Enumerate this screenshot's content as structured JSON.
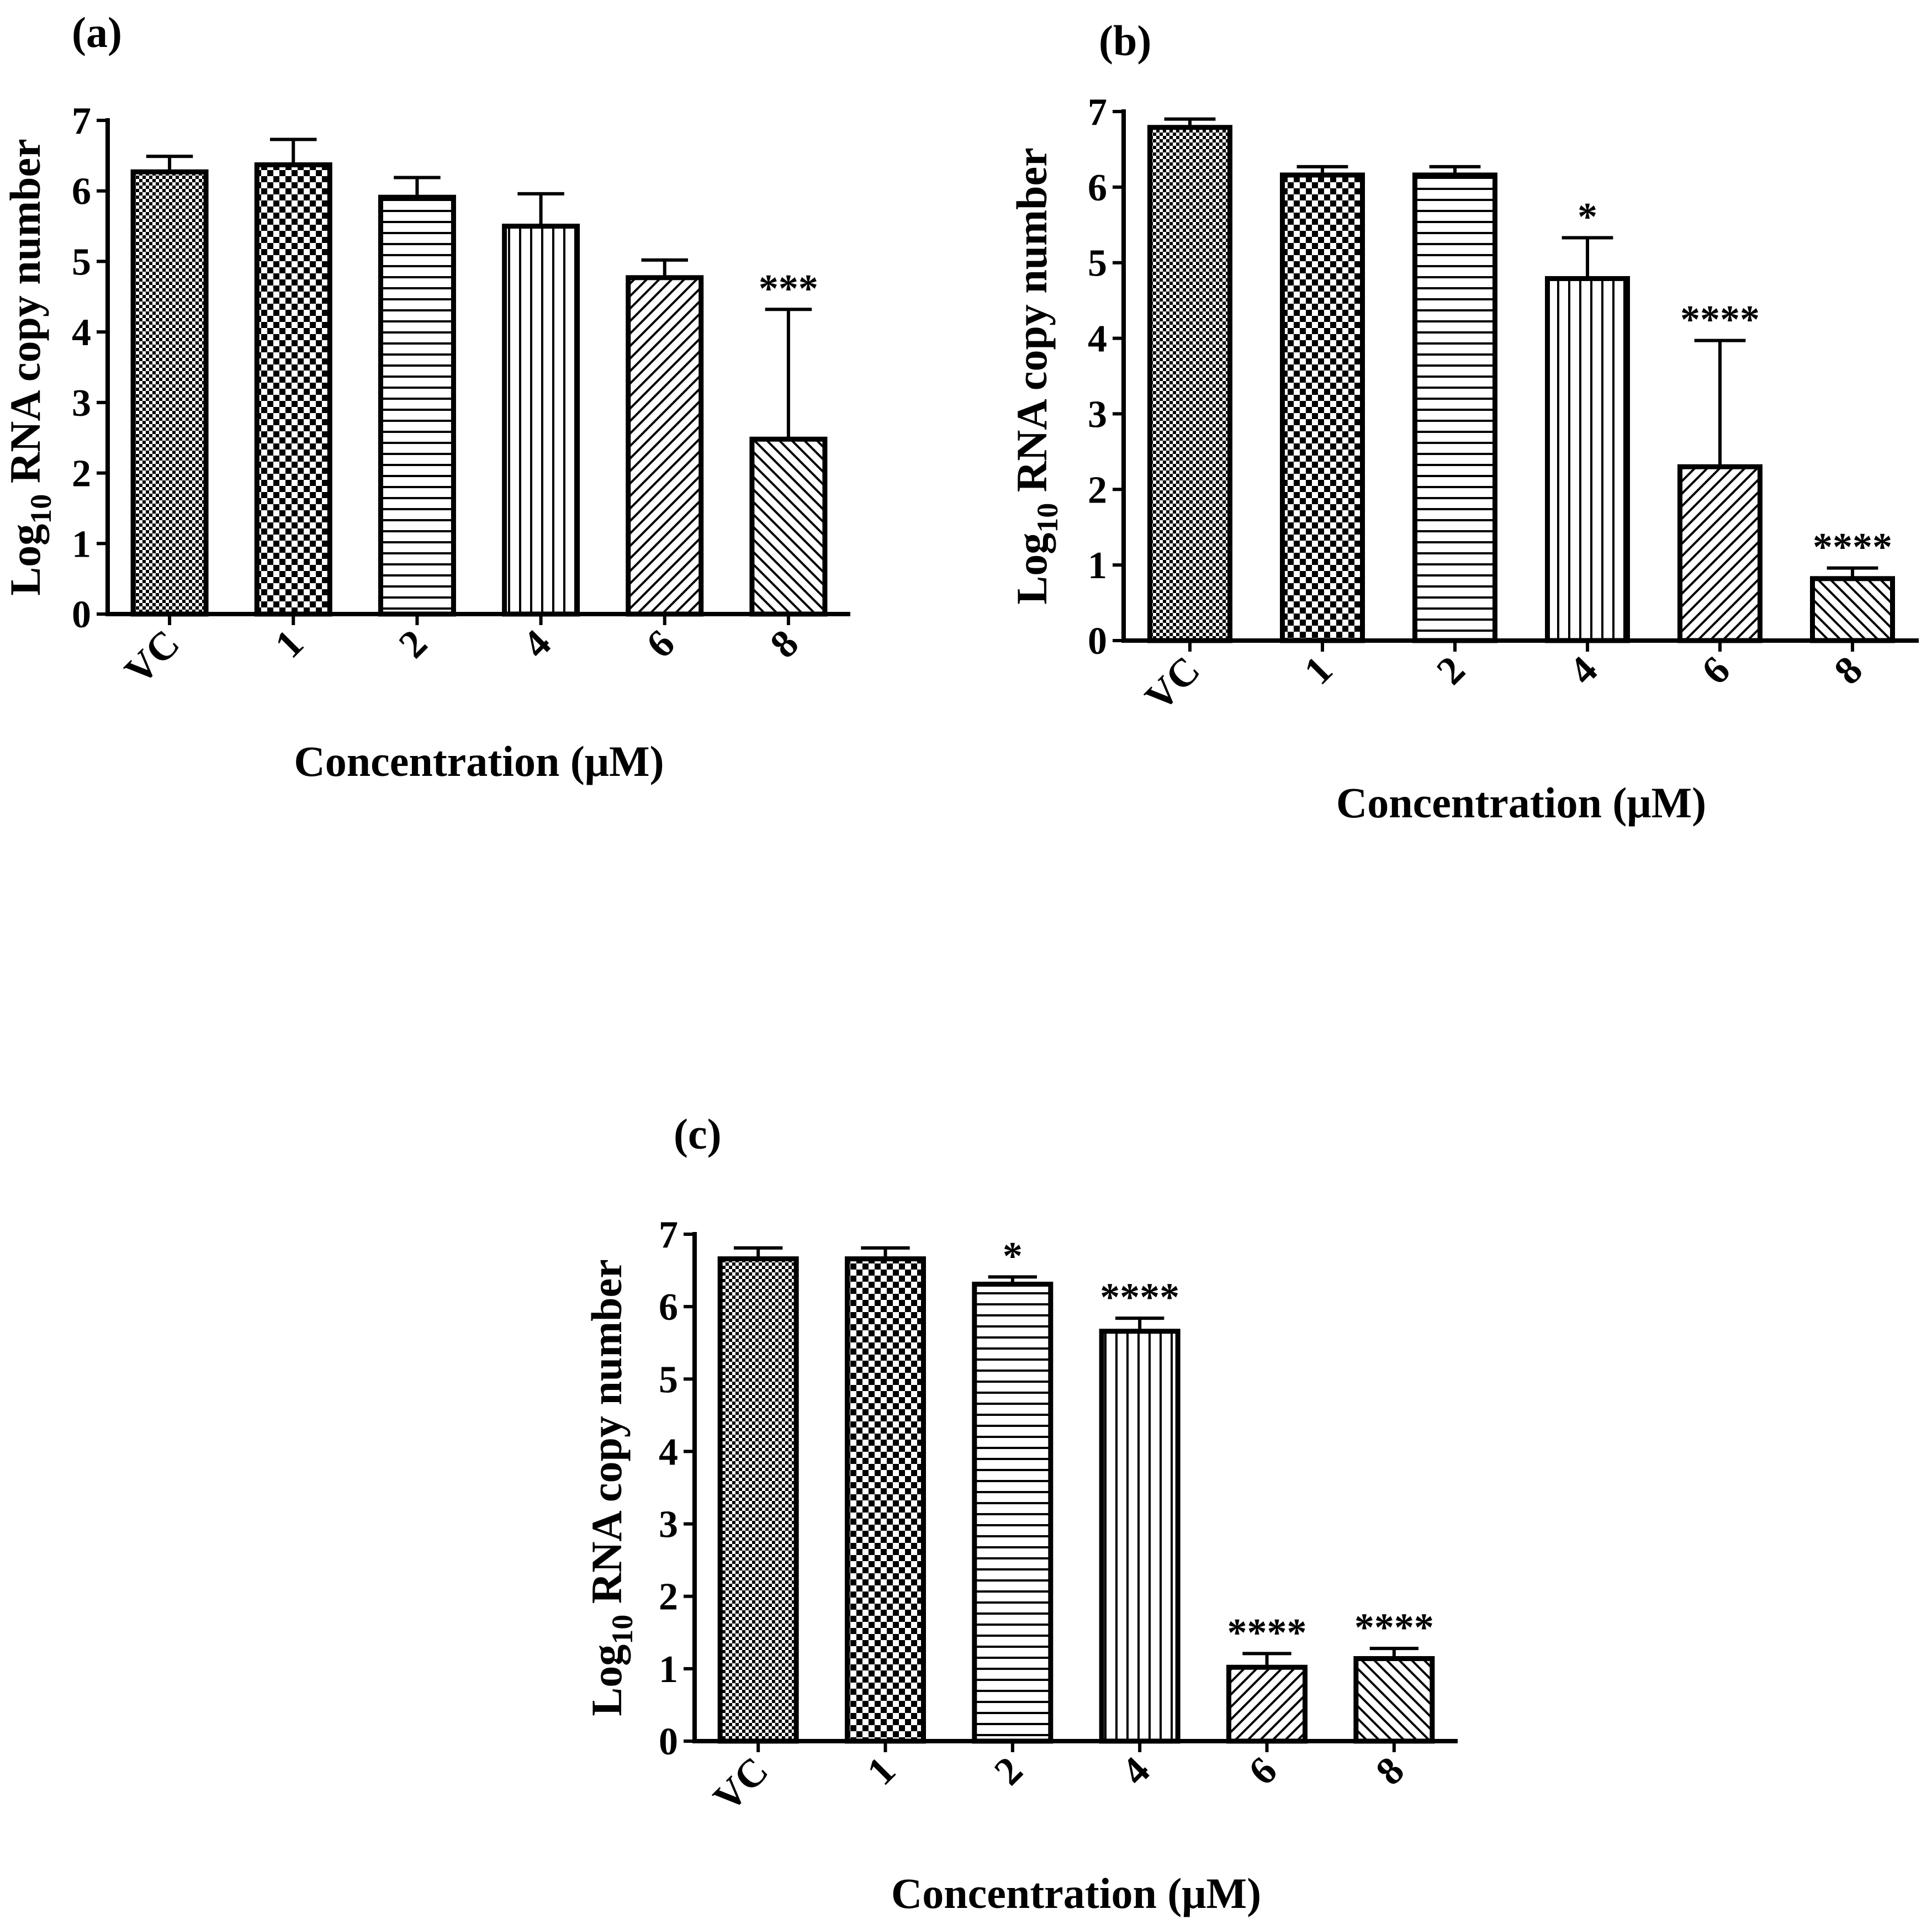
{
  "colors": {
    "ink": "#000000",
    "bar_fill": "#ffffff"
  },
  "chart_data": [
    {
      "type": "bar",
      "panel_label": "(a)",
      "title": "",
      "categories": [
        "VC",
        "1",
        "2",
        "4",
        "6",
        "8"
      ],
      "values": [
        6.27,
        6.37,
        5.91,
        5.5,
        4.77,
        2.48
      ],
      "errors": [
        0.22,
        0.36,
        0.28,
        0.46,
        0.25,
        1.84
      ],
      "significance": [
        "",
        "",
        "",
        "",
        "",
        "***"
      ],
      "patterns": [
        "fine-check",
        "coarse-check",
        "horizontal-lines",
        "vertical-lines",
        "diagonal-up",
        "diagonal-down"
      ],
      "xlabel": "Concentration (μM)",
      "ylabel": {
        "prefix": "Log",
        "subscript": "10",
        "suffix": " RNA copy number"
      },
      "ylim": [
        0,
        7
      ],
      "yticks": [
        "0",
        "1",
        "2",
        "3",
        "4",
        "5",
        "6",
        "7"
      ],
      "grid": false
    },
    {
      "type": "bar",
      "panel_label": "(b)",
      "title": "",
      "categories": [
        "VC",
        "1",
        "2",
        "4",
        "6",
        "8"
      ],
      "values": [
        6.79,
        6.16,
        6.16,
        4.79,
        2.3,
        0.82
      ],
      "errors": [
        0.11,
        0.11,
        0.11,
        0.54,
        1.67,
        0.14
      ],
      "significance": [
        "",
        "",
        "",
        "*",
        "****",
        "****"
      ],
      "patterns": [
        "fine-check",
        "coarse-check",
        "horizontal-lines",
        "vertical-lines",
        "diagonal-up",
        "diagonal-down"
      ],
      "xlabel": "Concentration (μM)",
      "ylabel": {
        "prefix": "Log",
        "subscript": "10",
        "suffix": " RNA copy number"
      },
      "ylim": [
        0,
        7
      ],
      "yticks": [
        "0",
        "1",
        "2",
        "3",
        "4",
        "5",
        "6",
        "7"
      ],
      "grid": false
    },
    {
      "type": "bar",
      "panel_label": "(c)",
      "title": "",
      "categories": [
        "VC",
        "1",
        "2",
        "4",
        "6",
        "8"
      ],
      "values": [
        6.66,
        6.66,
        6.31,
        5.66,
        1.02,
        1.14
      ],
      "errors": [
        0.15,
        0.15,
        0.1,
        0.18,
        0.19,
        0.14
      ],
      "significance": [
        "",
        "",
        "*",
        "****",
        "****",
        "****"
      ],
      "patterns": [
        "fine-check",
        "coarse-check",
        "horizontal-lines",
        "vertical-lines",
        "diagonal-up",
        "diagonal-down"
      ],
      "xlabel": "Concentration (μM)",
      "ylabel": {
        "prefix": "Log",
        "subscript": "10",
        "suffix": " RNA copy number"
      },
      "ylim": [
        0,
        7
      ],
      "yticks": [
        "0",
        "1",
        "2",
        "3",
        "4",
        "5",
        "6",
        "7"
      ],
      "grid": false
    }
  ]
}
